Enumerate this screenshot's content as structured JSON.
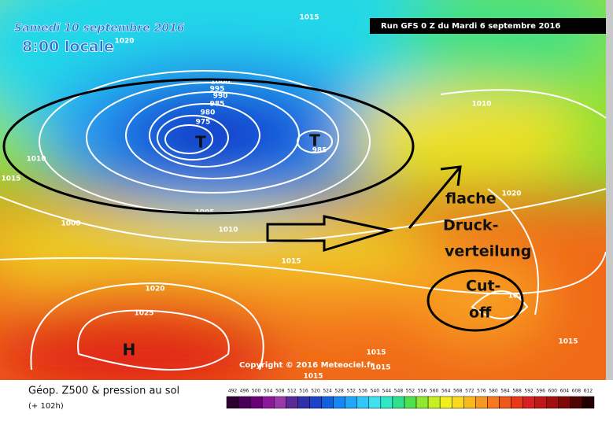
{
  "header": {
    "date": "Samedi 10 septembre 2016",
    "time": "8:00 locale",
    "run": "Run GFS 0 Z du Mardi 6 septembre 2016"
  },
  "isobars": [
    "1015",
    "1020",
    "1000",
    "995",
    "990",
    "985",
    "980",
    "975",
    "985",
    "1010",
    "1015",
    "1005",
    "1010",
    "1000",
    "1015",
    "1010",
    "1020",
    "1020",
    "1025",
    "1015",
    "1015",
    "1015",
    "1015",
    "101"
  ],
  "pressure_centers": [
    "T",
    "T",
    "H"
  ],
  "annotations": [
    "flache",
    "Druck-",
    "verteilung",
    "Cut-",
    "off"
  ],
  "copyright": "Copyright © 2016 Meteociel.fr",
  "legend": {
    "title": "Géop. Z500 & pression au sol",
    "lead": "(+ 102h)",
    "labels": [
      492,
      496,
      500,
      504,
      508,
      512,
      516,
      520,
      524,
      528,
      532,
      536,
      540,
      544,
      548,
      552,
      556,
      560,
      564,
      568,
      572,
      576,
      580,
      584,
      588,
      592,
      596,
      600,
      604,
      608,
      612
    ],
    "colors": [
      "#2b0030",
      "#4a0058",
      "#6a0078",
      "#8a1898",
      "#9a3aa8",
      "#5a2a98",
      "#3030a8",
      "#2040c8",
      "#1060e0",
      "#1888f0",
      "#20a8f8",
      "#30c8f8",
      "#40e0f0",
      "#30e8c8",
      "#30e090",
      "#50e050",
      "#90e830",
      "#c8f020",
      "#f0f020",
      "#f8d820",
      "#f8b820",
      "#f89820",
      "#f87820",
      "#f05818",
      "#e83818",
      "#d82020",
      "#c01818",
      "#a01010",
      "#800808",
      "#500404",
      "#200000"
    ]
  }
}
